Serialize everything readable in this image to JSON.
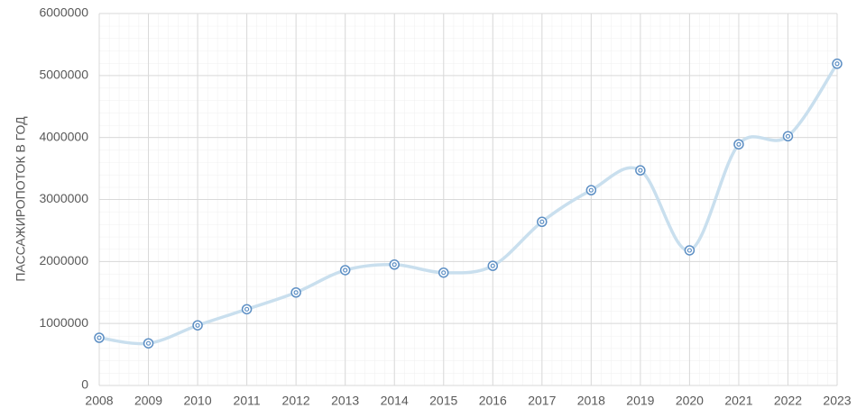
{
  "chart_data": {
    "type": "line",
    "y_label": "ПАССАЖИРОПОТОК В ГОД",
    "x": [
      2008,
      2009,
      2010,
      2011,
      2012,
      2013,
      2014,
      2015,
      2016,
      2017,
      2018,
      2019,
      2020,
      2021,
      2022,
      2023
    ],
    "series": [
      {
        "color": "#c9dfee",
        "marker_color": "#5d8fc4",
        "values": [
          770000,
          680000,
          970000,
          1230000,
          1500000,
          1860000,
          1950000,
          1820000,
          1930000,
          2640000,
          3150000,
          3470000,
          2180000,
          3890000,
          4020000,
          5190000
        ]
      }
    ],
    "xlim": [
      2008,
      2023
    ],
    "xticks": [
      2008,
      2009,
      2010,
      2011,
      2012,
      2013,
      2014,
      2015,
      2016,
      2017,
      2018,
      2019,
      2020,
      2021,
      2022,
      2023
    ],
    "ylim": [
      0,
      6000000
    ],
    "yticks": [
      0,
      1000000,
      2000000,
      3000000,
      4000000,
      5000000,
      6000000
    ],
    "grid": true,
    "smooth": true
  }
}
